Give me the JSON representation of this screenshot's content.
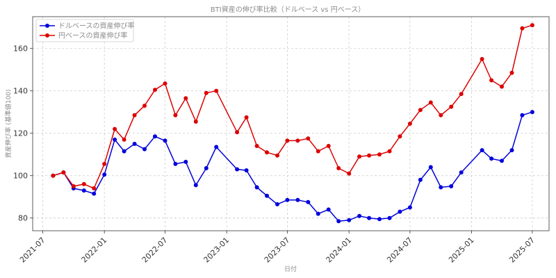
{
  "chart_data": {
    "type": "line",
    "title": "BTI資産の伸び率比較（ドルベース vs 円ベース）",
    "xlabel": "日付",
    "ylabel": "資産伸び率 (基準値100)",
    "x_tick_labels": [
      "2021-07",
      "2022-01",
      "2022-07",
      "2023-01",
      "2023-07",
      "2024-01",
      "2024-07",
      "2025-01",
      "2025-07"
    ],
    "y_ticks": [
      80,
      100,
      120,
      140,
      160
    ],
    "xlim": [
      "2021-06-01",
      "2025-08-20"
    ],
    "ylim": [
      74,
      175
    ],
    "grid": true,
    "legend_position": "top-left",
    "x": [
      "2021-08-01",
      "2021-09-01",
      "2021-10-01",
      "2021-11-01",
      "2021-12-01",
      "2022-01-01",
      "2022-02-01",
      "2022-03-01",
      "2022-04-01",
      "2022-05-01",
      "2022-06-01",
      "2022-07-01",
      "2022-08-01",
      "2022-09-01",
      "2022-10-01",
      "2022-11-01",
      "2022-12-01",
      "2023-02-01",
      "2023-03-01",
      "2023-04-01",
      "2023-05-01",
      "2023-06-01",
      "2023-07-01",
      "2023-08-01",
      "2023-09-01",
      "2023-10-01",
      "2023-11-01",
      "2023-12-01",
      "2024-01-01",
      "2024-02-01",
      "2024-03-01",
      "2024-04-01",
      "2024-05-01",
      "2024-06-01",
      "2024-07-01",
      "2024-08-01",
      "2024-09-01",
      "2024-10-01",
      "2024-11-01",
      "2024-12-01",
      "2025-02-01",
      "2025-03-01",
      "2025-04-01",
      "2025-05-01",
      "2025-06-01",
      "2025-07-01"
    ],
    "series": [
      {
        "name": "ドルベースの資産伸び率",
        "color": "#0000dd",
        "values": [
          100,
          101.5,
          94,
          93,
          91.5,
          100.5,
          117,
          111.5,
          115,
          112.5,
          118.5,
          116.5,
          105.5,
          106.5,
          95.5,
          103.5,
          113.5,
          103,
          102.5,
          94.5,
          90.5,
          86.5,
          88.5,
          88.5,
          87.5,
          82,
          84,
          78.5,
          79,
          81,
          80,
          79.5,
          80,
          83,
          85,
          98,
          104,
          94.5,
          95,
          101.5,
          112,
          108,
          107,
          112,
          128.5,
          130
        ]
      },
      {
        "name": "円ベースの資産伸び率",
        "color": "#dd0000",
        "values": [
          100,
          101.5,
          95,
          96,
          94,
          105.5,
          122,
          117,
          128.5,
          133,
          140.5,
          143.5,
          128.5,
          136.5,
          125.5,
          139,
          140,
          120.5,
          127.5,
          114,
          111,
          109.5,
          116.5,
          116.5,
          117.5,
          111.5,
          114,
          103.5,
          101,
          109,
          109.5,
          110,
          111.5,
          118.5,
          124.5,
          131,
          134.5,
          128.5,
          132.5,
          138.5,
          155,
          145,
          142,
          148.5,
          169.5,
          171
        ]
      }
    ]
  }
}
